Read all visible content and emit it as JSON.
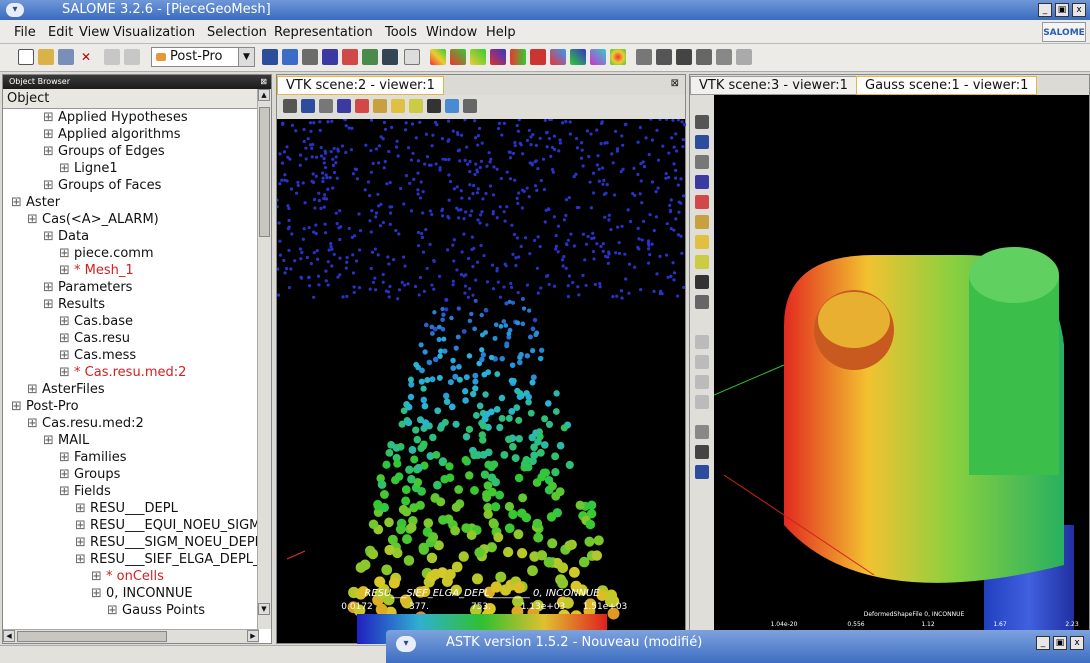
{
  "window": {
    "title": "SALOME 3.2.6 - [PieceGeoMesh]",
    "sys_icon": "chevron-down-icon",
    "buttons": [
      "_",
      "▣",
      "x"
    ]
  },
  "menu": [
    "File",
    "Edit",
    "View",
    "Visualization",
    "Selection",
    "Representation",
    "Tools",
    "Window",
    "Help"
  ],
  "logo_text": "SALOME",
  "toolbar": {
    "module_combo": "Post-Pro",
    "icons": [
      "new-icon",
      "open-icon",
      "save-icon",
      "close-icon",
      "copy-icon",
      "paste-icon",
      "scalar-map-icon",
      "deformed-shape-icon",
      "vectors-icon",
      "iso-surfaces-icon",
      "cut-planes-icon",
      "plot3d-icon",
      "gauss-points-icon"
    ]
  },
  "browser": {
    "header": "Object Browser",
    "column": "Object",
    "nodes": [
      {
        "label": "Applied Hypotheses",
        "indent": 3,
        "red": false
      },
      {
        "label": "Applied algorithms",
        "indent": 3,
        "red": false
      },
      {
        "label": "Groups of Edges",
        "indent": 3,
        "red": false
      },
      {
        "label": "Ligne1",
        "indent": 4,
        "red": false
      },
      {
        "label": "Groups of Faces",
        "indent": 3,
        "red": false
      },
      {
        "label": "Aster",
        "indent": 1,
        "red": false
      },
      {
        "label": "Cas(<A>_ALARM)",
        "indent": 2,
        "red": false
      },
      {
        "label": "Data",
        "indent": 3,
        "red": false
      },
      {
        "label": "piece.comm",
        "indent": 4,
        "red": false
      },
      {
        "label": "* Mesh_1",
        "indent": 4,
        "red": true
      },
      {
        "label": "Parameters",
        "indent": 3,
        "red": false
      },
      {
        "label": "Results",
        "indent": 3,
        "red": false
      },
      {
        "label": "Cas.base",
        "indent": 4,
        "red": false
      },
      {
        "label": "Cas.resu",
        "indent": 4,
        "red": false
      },
      {
        "label": "Cas.mess",
        "indent": 4,
        "red": false
      },
      {
        "label": "* Cas.resu.med:2",
        "indent": 4,
        "red": true
      },
      {
        "label": "AsterFiles",
        "indent": 2,
        "red": false
      },
      {
        "label": "Post-Pro",
        "indent": 1,
        "red": false
      },
      {
        "label": "Cas.resu.med:2",
        "indent": 2,
        "red": false
      },
      {
        "label": "MAIL",
        "indent": 3,
        "red": false
      },
      {
        "label": "Families",
        "indent": 4,
        "red": false
      },
      {
        "label": "Groups",
        "indent": 4,
        "red": false
      },
      {
        "label": "Fields",
        "indent": 4,
        "red": false
      },
      {
        "label": "RESU___DEPL",
        "indent": 5,
        "red": false
      },
      {
        "label": "RESU___EQUI_NOEU_SIGM_",
        "indent": 5,
        "red": false
      },
      {
        "label": "RESU___SIGM_NOEU_DEPL_",
        "indent": 5,
        "red": false
      },
      {
        "label": "RESU___SIEF_ELGA_DEPL_",
        "indent": 5,
        "red": false
      },
      {
        "label": "* onCells",
        "indent": 6,
        "red": true
      },
      {
        "label": "0, INCONNUE",
        "indent": 6,
        "red": false
      },
      {
        "label": "Gauss Points",
        "indent": 7,
        "red": false
      }
    ]
  },
  "viewer1": {
    "tab": "VTK scene:2 - viewer:1",
    "scalar_title": "RESU___SIEF_ELGA_DEPL________ 0, INCONNUE",
    "scalar_labels": [
      "0.0172",
      "377.",
      "753.",
      "1.13e+03",
      "1.51e+03"
    ],
    "colors": {
      "low": "#2020c0",
      "mid": "#30c030",
      "high": "#e02020"
    }
  },
  "viewer2": {
    "tabs": [
      "VTK scene:3 - viewer:1",
      "Gauss scene:1 - viewer:1"
    ],
    "active_tab": 1,
    "scalar_title": "DeformedShapeFile 0, INCONNUE",
    "scalar_labels": [
      "1.04e-20",
      "0.556",
      "1.12",
      "1.67",
      "2.23"
    ]
  },
  "astk": {
    "title": "ASTK version 1.5.2 - Nouveau (modifié)",
    "buttons": [
      "_",
      "▣",
      "x"
    ]
  }
}
